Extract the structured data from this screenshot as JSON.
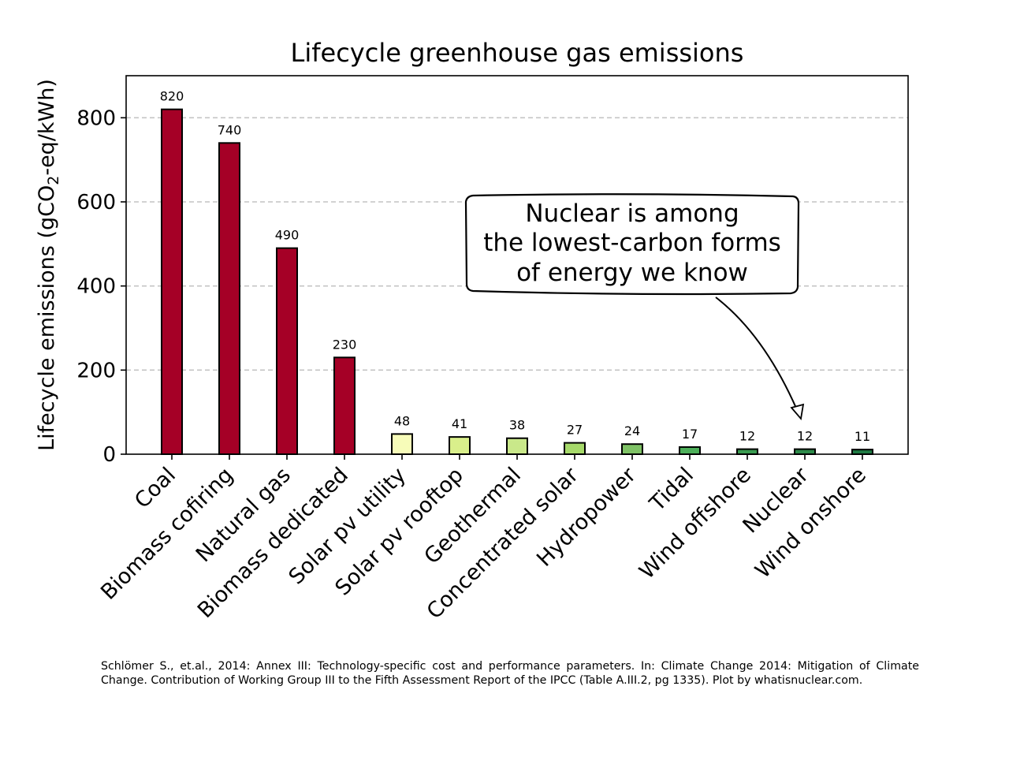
{
  "chart_data": {
    "type": "bar",
    "title": "Lifecycle greenhouse gas emissions",
    "ylabel": {
      "prefix": "Lifecycle emissions (gCO",
      "subscript": "2",
      "suffix": "-eq/kWh)"
    },
    "xlabel": "",
    "ylim": [
      0,
      900
    ],
    "yticks": [
      0,
      200,
      400,
      600,
      800
    ],
    "grid": "y-dashed",
    "categories": [
      "Coal",
      "Biomass cofiring",
      "Natural gas",
      "Biomass dedicated",
      "Solar pv utility",
      "Solar pv rooftop",
      "Geothermal",
      "Concentrated solar",
      "Hydropower",
      "Tidal",
      "Wind offshore",
      "Nuclear",
      "Wind onshore"
    ],
    "values": [
      820,
      740,
      490,
      230,
      48,
      41,
      38,
      27,
      24,
      17,
      12,
      12,
      11
    ],
    "colors": [
      "#a50026",
      "#a50026",
      "#a50026",
      "#a50026",
      "#f7fcb9",
      "#d9ef8b",
      "#c9e88a",
      "#a6d96a",
      "#7fc266",
      "#4daf5a",
      "#3a9b50",
      "#2d8a4a",
      "#1f7a44"
    ],
    "annotation": {
      "lines": [
        "Nuclear is among",
        "the lowest-carbon forms",
        "of energy we know"
      ],
      "points_to": "Nuclear"
    }
  },
  "caption": "Schlömer S., et.al., 2014: Annex III: Technology-specific cost and performance parameters. In: Climate Change 2014: Mitigation of Climate Change. Contribution of Working Group III to the Fifth Assessment Report of the IPCC (Table A.III.2, pg 1335). Plot by whatisnuclear.com."
}
